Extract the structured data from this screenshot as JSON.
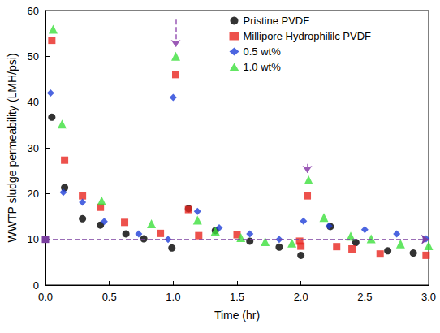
{
  "chart_data": {
    "type": "scatter",
    "x_label": "Time (hr)",
    "y_label": "WWTP sludge permeability (LMH/psi)",
    "xlim": [
      0,
      3
    ],
    "xticks": [
      {
        "value": 0,
        "label": "0.0"
      },
      {
        "value": 0.5,
        "label": "0.5"
      },
      {
        "value": 1,
        "label": "1.0"
      },
      {
        "value": 1.5,
        "label": "1.5"
      },
      {
        "value": 2,
        "label": "2.0"
      },
      {
        "value": 2.5,
        "label": "2.5"
      },
      {
        "value": 3,
        "label": "3.0"
      }
    ],
    "ylim": [
      0,
      60
    ],
    "yticks": [
      0,
      10,
      20,
      30,
      40,
      50,
      60
    ],
    "grid": false,
    "legend": "upper right",
    "reference_line": {
      "y": 10,
      "color": "#7b3fa0",
      "line_style": "dashed"
    },
    "arrows": [
      {
        "x": 1.02,
        "y_from": 58,
        "y_to": 52,
        "color": "#9b59b6",
        "line_style": "dashed"
      },
      {
        "x": 2.05,
        "y_from": 26.5,
        "y_to": 24.5,
        "color": "#9b59b6",
        "line_style": "dashed"
      }
    ],
    "series": [
      {
        "name": "Pristine PVDF",
        "color": "#000000",
        "marker": "circle",
        "x": [
          0.05,
          0.15,
          0.29,
          0.43,
          0.63,
          0.77,
          0.99,
          1.12,
          1.33,
          1.6,
          1.83,
          2.0,
          2.23,
          2.43,
          2.68,
          2.88
        ],
        "values": [
          36.7,
          21.3,
          14.5,
          13.1,
          11.2,
          10.1,
          8.1,
          16.7,
          11.9,
          9.6,
          8.3,
          6.5,
          12.8,
          9.3,
          7.5,
          7.0
        ]
      },
      {
        "name": "Millipore Hydrophililc PVDF",
        "color": "#e8251f",
        "marker": "square",
        "x": [
          0.05,
          0.15,
          0.29,
          0.43,
          0.62,
          0.9,
          1.02,
          1.12,
          1.2,
          1.5,
          1.99,
          2.0,
          2.05,
          2.28,
          2.4,
          2.62,
          2.98
        ],
        "values": [
          53.5,
          27.3,
          19.5,
          17.0,
          13.7,
          11.3,
          46.0,
          16.5,
          10.8,
          11.0,
          9.6,
          8.5,
          19.5,
          8.4,
          7.9,
          6.8,
          6.5
        ]
      },
      {
        "name": "0.5 wt%",
        "color": "#1f3fd8",
        "marker": "diamond",
        "x": [
          0.04,
          0.14,
          0.29,
          0.46,
          0.73,
          0.96,
          1.0,
          1.19,
          1.36,
          1.6,
          1.83,
          2.02,
          2.22,
          2.5,
          2.75,
          2.98
        ],
        "values": [
          42.0,
          20.3,
          18.1,
          13.9,
          11.2,
          10.0,
          41.0,
          16.1,
          12.5,
          11.2,
          10.0,
          14.0,
          12.9,
          12.1,
          11.2,
          10.1
        ]
      },
      {
        "name": "1.0 wt%",
        "color": "#3ce03c",
        "marker": "triangle",
        "x": [
          0.06,
          0.13,
          0.44,
          0.83,
          1.02,
          1.19,
          1.33,
          1.53,
          1.72,
          1.93,
          2.06,
          2.18,
          2.39,
          2.55,
          2.78,
          3.0
        ],
        "values": [
          55.9,
          35.2,
          18.4,
          13.4,
          50.0,
          14.2,
          11.8,
          10.4,
          9.5,
          9.2,
          23.0,
          14.8,
          10.7,
          10.1,
          9.0,
          8.6
        ]
      }
    ]
  }
}
